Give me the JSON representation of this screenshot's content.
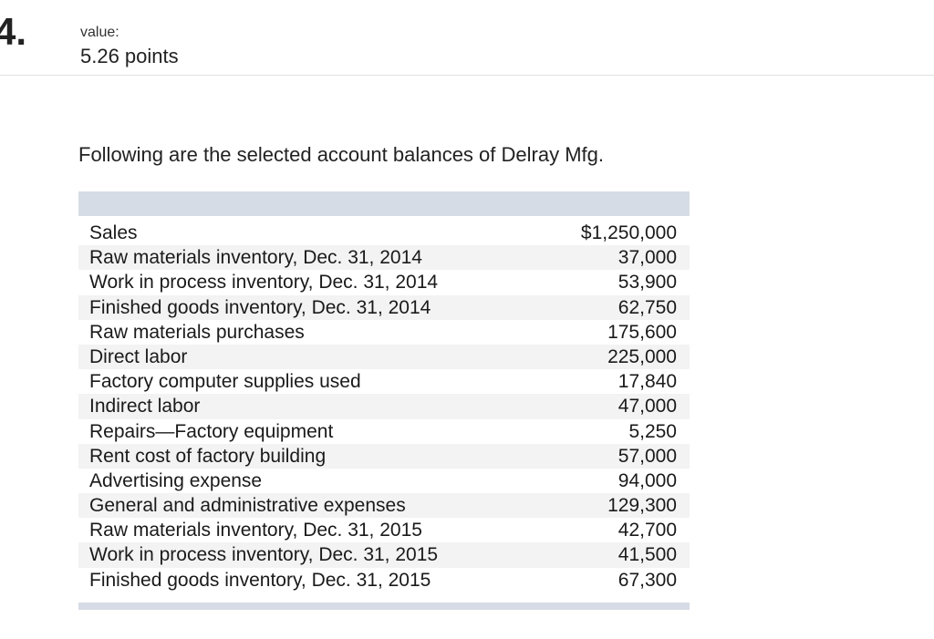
{
  "question": {
    "number": "4.",
    "value_label": "value:",
    "points": "5.26 points"
  },
  "intro": "Following are the selected account balances of Delray Mfg.",
  "accounts": [
    {
      "label": "Sales",
      "amount": "$1,250,000"
    },
    {
      "label": "Raw materials inventory, Dec. 31, 2014",
      "amount": "37,000"
    },
    {
      "label": "Work in process inventory, Dec. 31, 2014",
      "amount": "53,900"
    },
    {
      "label": "Finished goods inventory, Dec. 31, 2014",
      "amount": "62,750"
    },
    {
      "label": "Raw materials purchases",
      "amount": "175,600"
    },
    {
      "label": "Direct labor",
      "amount": "225,000"
    },
    {
      "label": "Factory computer supplies used",
      "amount": "17,840"
    },
    {
      "label": "Indirect labor",
      "amount": "47,000"
    },
    {
      "label": "Repairs—Factory equipment",
      "amount": "5,250"
    },
    {
      "label": "Rent cost of factory building",
      "amount": "57,000"
    },
    {
      "label": "Advertising expense",
      "amount": "94,000"
    },
    {
      "label": "General and administrative expenses",
      "amount": "129,300"
    },
    {
      "label": "Raw materials inventory, Dec. 31, 2015",
      "amount": "42,700"
    },
    {
      "label": "Work in process inventory, Dec. 31, 2015",
      "amount": "41,500"
    },
    {
      "label": "Finished goods inventory, Dec. 31, 2015",
      "amount": "67,300"
    }
  ]
}
